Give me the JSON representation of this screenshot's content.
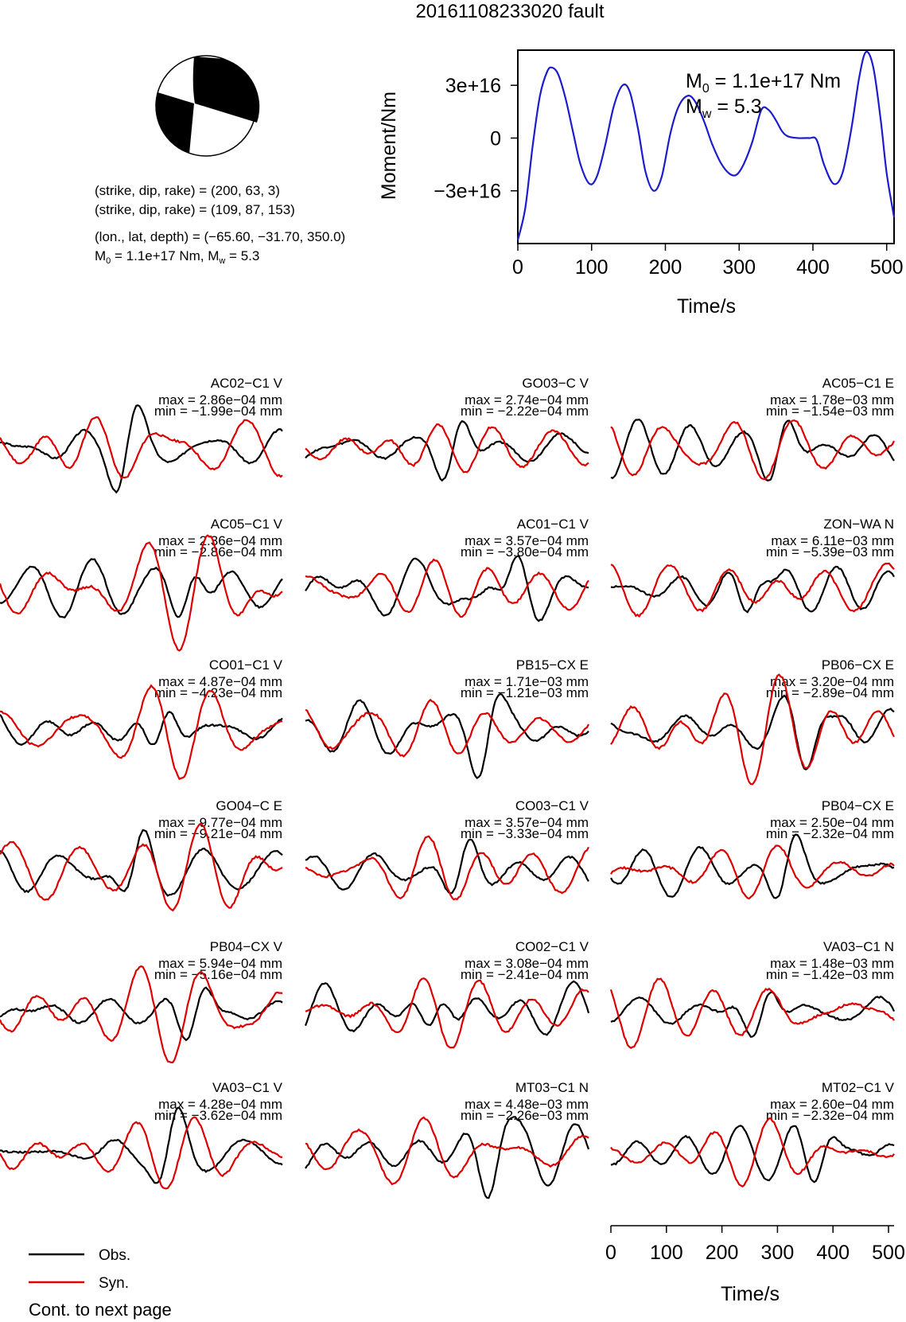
{
  "title": "20161108233020 fault",
  "mechanism": {
    "line1": "(strike, dip, rake) = (200, 63, 3)",
    "line2": "(strike, dip, rake) = (109, 87, 153)",
    "line3": "(lon., lat, depth) = (−65.60, −31.70, 350.0)",
    "line4_m0_sym": "M",
    "line4_m0_sub": "0",
    "line4_rest": " =  1.1e+17 Nm, M",
    "line4_mw_sub": "w",
    "line4_mw_val": " = 5.3"
  },
  "stf": {
    "ylabel": "Moment/Nm",
    "xlabel": "Time/s",
    "m0_sym": "M",
    "m0_sub": "0",
    "m0_val": " =  1.1e+17 Nm",
    "mw_sym": "M",
    "mw_sub": "w",
    "mw_val": " = 5.3"
  },
  "legend": {
    "obs": "Obs.",
    "syn": "Syn.",
    "note": "Cont. to next page"
  },
  "time_axis": {
    "label": "Time/s"
  },
  "chart_data": [
    {
      "type": "line",
      "xlabel": "Time/s",
      "ylabel": "Moment/Nm",
      "xlim": [
        0,
        510
      ],
      "ylim": [
        -6e+16,
        5e+16
      ],
      "xticks": [
        0,
        100,
        200,
        300,
        400,
        500
      ],
      "xtick_labels": [
        "0",
        "100",
        "200",
        "300",
        "400",
        "500"
      ],
      "yticks": [
        -3e+16,
        0,
        3e+16
      ],
      "ytick_labels": [
        "−3e+16",
        "0",
        "3e+16"
      ],
      "series": [
        {
          "color": "#1c1ccc",
          "x": [
            0,
            10,
            20,
            30,
            40,
            47,
            55,
            65,
            75,
            85,
            97,
            107,
            118,
            130,
            142,
            152,
            163,
            173,
            184,
            195,
            207,
            218,
            230,
            240,
            252,
            263,
            275,
            286,
            296,
            306,
            318,
            330,
            340,
            350,
            358,
            366,
            380,
            395,
            405,
            415,
            428,
            440,
            452,
            463,
            472,
            482,
            492,
            500,
            510
          ],
          "y": [
            -5.8e+16,
            -4e+16,
            -5000000000000000.0,
            2.4e+16,
            3.8e+16,
            4e+16,
            3.6e+16,
            2.2e+16,
            3000000000000000.0,
            -1.5e+16,
            -2.6e+16,
            -2.2e+16,
            -5000000000000000.0,
            1.8e+16,
            3e+16,
            2.6e+16,
            5000000000000000.0,
            -1.9e+16,
            -3e+16,
            -2.2e+16,
            3000000000000000.0,
            1.8e+16,
            2.4e+16,
            2.1e+16,
            1e+16,
            -3000000000000000.0,
            -1.4e+16,
            -2e+16,
            -2.1e+16,
            -1.5e+16,
            -2000000000000000.0,
            1.6e+16,
            1.6e+16,
            1e+16,
            4000000000000000.0,
            1000000000000000.0,
            0,
            0,
            -1000000000000000.0,
            -1.5e+16,
            -2.6e+16,
            -2e+16,
            5000000000000000.0,
            3.5e+16,
            4.9e+16,
            4e+16,
            1e+16,
            -2e+16,
            -4.5e+16
          ]
        }
      ]
    },
    {
      "type": "line",
      "panels": [
        {
          "station": "AC02−C1 V",
          "max": "max = 2.86e−04 mm",
          "min": "min = −1.99e−04 mm"
        },
        {
          "station": "GO03−C V",
          "max": "max = 2.74e−04 mm",
          "min": "min = −2.22e−04 mm"
        },
        {
          "station": "AC05−C1 E",
          "max": "max = 1.78e−03 mm",
          "min": "min = −1.54e−03 mm"
        },
        {
          "station": "AC05−C1 V",
          "max": "max = 2.36e−04 mm",
          "min": "min = −2.86e−04 mm"
        },
        {
          "station": "AC01−C1 V",
          "max": "max = 3.57e−04 mm",
          "min": "min = −3.80e−04 mm"
        },
        {
          "station": "ZON−WA N",
          "max": "max = 6.11e−03 mm",
          "min": "min = −5.39e−03 mm"
        },
        {
          "station": "CO01−C1 V",
          "max": "max = 4.87e−04 mm",
          "min": "min = −4.23e−04 mm"
        },
        {
          "station": "PB15−CX E",
          "max": "max = 1.71e−03 mm",
          "min": "min = −1.21e−03 mm"
        },
        {
          "station": "PB06−CX E",
          "max": "max = 3.20e−04 mm",
          "min": "min = −2.89e−04 mm"
        },
        {
          "station": "GO04−C E",
          "max": "max = 9.77e−04 mm",
          "min": "min = −9.21e−04 mm"
        },
        {
          "station": "CO03−C1 V",
          "max": "max = 3.57e−04 mm",
          "min": "min = −3.33e−04 mm"
        },
        {
          "station": "PB04−CX E",
          "max": "max = 2.50e−04 mm",
          "min": "min = −2.32e−04 mm"
        },
        {
          "station": "PB04−CX V",
          "max": "max = 5.94e−04 mm",
          "min": "min = −5.16e−04 mm"
        },
        {
          "station": "CO02−C1 V",
          "max": "max = 3.08e−04 mm",
          "min": "min = −2.41e−04 mm"
        },
        {
          "station": "VA03−C1 N",
          "max": "max = 1.48e−03 mm",
          "min": "min = −1.42e−03 mm"
        },
        {
          "station": "VA03−C1 V",
          "max": "max = 4.28e−04 mm",
          "min": "min = −3.62e−04 mm"
        },
        {
          "station": "MT03−C1 N",
          "max": "max = 4.48e−03 mm",
          "min": "min = −2.26e−03 mm"
        },
        {
          "station": "MT02−C1 V",
          "max": "max = 2.60e−04 mm",
          "min": "min = −2.32e−04 mm"
        }
      ],
      "legend": [
        {
          "label": "Obs.",
          "color": "#000000"
        },
        {
          "label": "Syn.",
          "color": "#dd0000"
        }
      ],
      "xlabel": "Time/s",
      "xlim": [
        0,
        510
      ],
      "xticks": [
        0,
        100,
        200,
        300,
        400,
        500
      ],
      "xtick_labels": [
        "0",
        "100",
        "200",
        "300",
        "400",
        "500"
      ]
    }
  ]
}
